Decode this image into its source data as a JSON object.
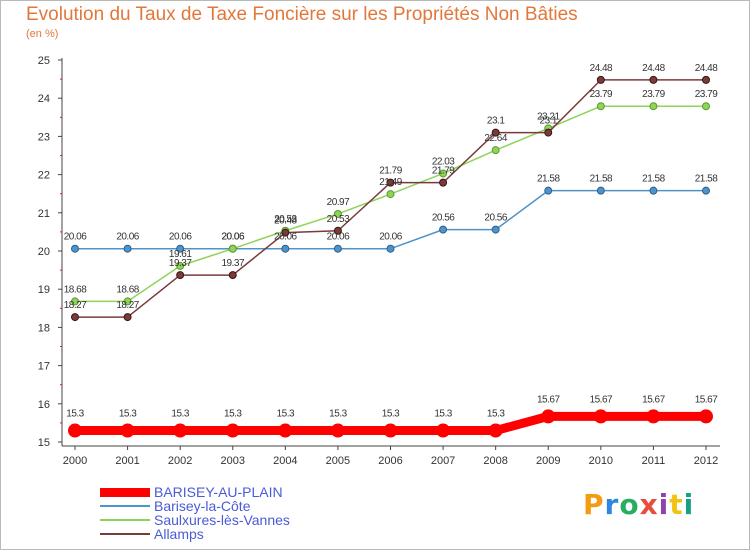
{
  "chart_data": {
    "type": "line",
    "title": "Evolution du Taux de Taxe Foncière sur les Propriétés Non Bâties",
    "ylabel": "(en %)",
    "xlabel": "",
    "x": [
      "2000",
      "2001",
      "2002",
      "2003",
      "2004",
      "2005",
      "2006",
      "2007",
      "2008",
      "2009",
      "2010",
      "2011",
      "2012"
    ],
    "ylim": [
      15,
      25
    ],
    "yticks": [
      "15",
      "16",
      "17",
      "18",
      "19",
      "20",
      "21",
      "22",
      "23",
      "24",
      "25"
    ],
    "grid": false,
    "legend_position": "bottom-left",
    "series": [
      {
        "name": "BARISEY-AU-PLAIN",
        "color": "#ff0000",
        "values": [
          15.3,
          15.3,
          15.3,
          15.3,
          15.3,
          15.3,
          15.3,
          15.3,
          15.3,
          15.67,
          15.67,
          15.67,
          15.67
        ],
        "labels": [
          "15.3",
          "15.3",
          "15.3",
          "15.3",
          "15.3",
          "15.3",
          "15.3",
          "15.3",
          "15.3",
          "15.67",
          "15.67",
          "15.67",
          "15.67"
        ]
      },
      {
        "name": "Barisey-la-Côte",
        "color": "#4f93c9",
        "values": [
          20.06,
          20.06,
          20.06,
          20.06,
          20.06,
          20.06,
          20.06,
          20.56,
          20.56,
          21.58,
          21.58,
          21.58,
          21.58
        ],
        "labels": [
          "20.06",
          "20.06",
          "20.06",
          "20.06",
          "20.06",
          "20.06",
          "20.06",
          "20.56",
          "20.56",
          "21.58",
          "21.58",
          "21.58",
          "21.58"
        ]
      },
      {
        "name": "Saulxures-lès-Vannes",
        "color": "#8fd35a",
        "values": [
          18.68,
          18.68,
          19.61,
          20.06,
          20.53,
          20.97,
          21.49,
          22.03,
          22.64,
          23.21,
          23.79,
          23.79,
          23.79
        ],
        "labels": [
          "18.68",
          "18.68",
          "19.61",
          "20.06",
          "20.53",
          "20.97",
          "21.49",
          "22.03",
          "22.64",
          "23.21",
          "23.79",
          "23.79",
          "23.79"
        ]
      },
      {
        "name": "Allamps",
        "color": "#7a3a3a",
        "values": [
          18.27,
          18.27,
          19.37,
          19.37,
          20.48,
          20.53,
          21.79,
          21.79,
          23.1,
          23.1,
          24.48,
          24.48,
          24.48
        ],
        "labels": [
          "18.27",
          "18.27",
          "19.37",
          "19.37",
          "20.48",
          "20.53",
          "21.79",
          "21.79",
          "23.1",
          "23.1",
          "24.48",
          "24.48",
          "24.48"
        ]
      }
    ]
  },
  "logo": {
    "text": "Proxiti",
    "letters": [
      "P",
      "r",
      "o",
      "x",
      "i",
      "t",
      "i"
    ],
    "colors": [
      "#f39c12",
      "#2e86de",
      "#27ae60",
      "#e74c3c",
      "#8e44ad",
      "#f1c40f",
      "#16a085"
    ]
  }
}
